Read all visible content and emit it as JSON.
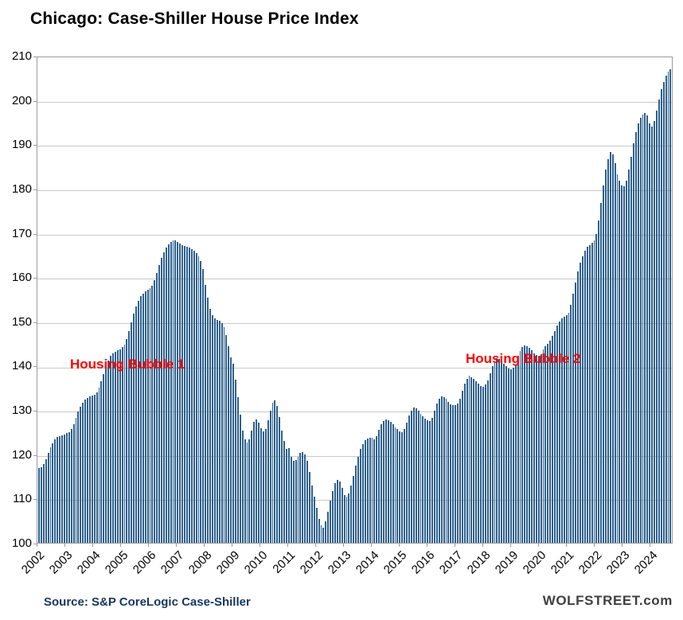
{
  "page": {
    "title": "Chicago: Case-Shiller House Price Index",
    "source_note": "Source: S&P CoreLogic Case-Shiller",
    "watermark": "WOLFSTREET.com"
  },
  "annotations": [
    {
      "id": "housing-bubble-1",
      "text": "Housing Bubble 1"
    },
    {
      "id": "housing-bubble-2",
      "text": "Housing Bubble 2"
    }
  ],
  "colors": {
    "title": "#000000",
    "bar": "#2F618D",
    "annotation": "#FF0000",
    "source_note": "#17365D",
    "watermark": "#3F3F3F",
    "gridline": "#C9C9C9",
    "plot_border": "#9B9B9B"
  },
  "chart_data": {
    "type": "bar",
    "title": "Chicago: Case-Shiller House Price Index",
    "x_start": "2002-01",
    "x_end": "2024-10",
    "frequency": "monthly",
    "xlabel": "",
    "ylabel": "",
    "ylim": [
      100,
      210
    ],
    "ytick_step": 10,
    "grid": "horizontal",
    "legend": "none",
    "xtick_interval_months": 12,
    "xtick_labels": [
      "2002",
      "2003",
      "2004",
      "2005",
      "2006",
      "2007",
      "2008",
      "2009",
      "2010",
      "2011",
      "2012",
      "2013",
      "2014",
      "2015",
      "2016",
      "2017",
      "2018",
      "2019",
      "2020",
      "2021",
      "2022",
      "2023",
      "2024"
    ],
    "values": [
      117.0,
      117.2,
      117.9,
      119.0,
      120.3,
      121.6,
      122.6,
      123.4,
      123.9,
      124.2,
      124.4,
      124.6,
      124.8,
      125.1,
      125.7,
      126.9,
      128.3,
      129.7,
      130.9,
      131.8,
      132.4,
      132.8,
      133.1,
      133.3,
      133.6,
      134.1,
      135.1,
      136.6,
      138.3,
      139.9,
      141.3,
      142.3,
      142.9,
      143.3,
      143.6,
      143.9,
      144.3,
      144.9,
      146.1,
      147.9,
      149.9,
      151.9,
      153.5,
      154.9,
      155.9,
      156.5,
      156.9,
      157.3,
      157.7,
      158.3,
      159.6,
      161.1,
      162.9,
      164.5,
      165.9,
      166.9,
      167.7,
      168.2,
      168.5,
      168.5,
      168.2,
      167.8,
      167.5,
      167.3,
      167.1,
      166.9,
      166.6,
      166.2,
      165.7,
      165.0,
      163.8,
      162.0,
      158.5,
      155.5,
      153.0,
      151.5,
      150.8,
      150.5,
      150.3,
      149.8,
      148.8,
      147.0,
      144.5,
      142.0,
      140.5,
      137.0,
      133.0,
      129.0,
      125.5,
      123.5,
      122.8,
      123.5,
      125.5,
      127.5,
      128.0,
      127.2,
      126.0,
      125.3,
      125.8,
      127.8,
      130.0,
      131.8,
      132.2,
      131.0,
      128.5,
      125.5,
      123.0,
      121.3,
      121.5,
      119.5,
      118.5,
      118.8,
      119.5,
      120.3,
      120.5,
      120.0,
      118.5,
      116.0,
      113.0,
      110.5,
      108.0,
      105.5,
      104.0,
      103.5,
      104.8,
      107.0,
      109.5,
      111.8,
      113.5,
      114.3,
      113.8,
      112.5,
      110.8,
      110.5,
      111.2,
      113.0,
      115.2,
      117.5,
      119.5,
      121.2,
      122.4,
      123.2,
      123.6,
      123.8,
      123.8,
      123.5,
      124.2,
      125.6,
      126.8,
      127.6,
      128.0,
      127.8,
      127.4,
      126.8,
      126.2,
      125.8,
      125.2,
      125.0,
      125.8,
      127.3,
      128.8,
      130.0,
      130.6,
      130.4,
      129.9,
      129.2,
      128.6,
      128.2,
      127.8,
      127.6,
      128.4,
      130.0,
      131.5,
      132.6,
      133.2,
      133.0,
      132.6,
      132.0,
      131.4,
      131.2,
      131.2,
      131.5,
      132.6,
      134.4,
      136.0,
      137.2,
      137.8,
      137.6,
      137.2,
      136.6,
      136.0,
      135.6,
      135.4,
      135.8,
      136.8,
      138.5,
      140.0,
      141.2,
      141.8,
      141.6,
      141.2,
      140.6,
      140.0,
      139.5,
      139.3,
      139.6,
      140.4,
      142.0,
      143.4,
      144.4,
      144.8,
      144.6,
      144.2,
      143.6,
      143.0,
      142.6,
      142.4,
      142.8,
      143.8,
      144.6,
      145.0,
      145.8,
      146.8,
      148.0,
      149.2,
      150.2,
      150.8,
      151.2,
      151.5,
      152.2,
      154.0,
      156.5,
      159.0,
      161.5,
      163.5,
      165.0,
      166.2,
      167.0,
      167.5,
      168.0,
      168.5,
      170.0,
      173.0,
      177.0,
      181.0,
      184.5,
      187.0,
      188.5,
      188.0,
      186.0,
      183.5,
      182.0,
      181.0,
      180.8,
      182.0,
      184.5,
      187.5,
      190.5,
      193.0,
      195.0,
      196.3,
      197.0,
      197.3,
      196.8,
      195.0,
      194.3,
      195.5,
      198.0,
      200.5,
      202.8,
      204.5,
      205.8,
      206.8,
      207.3
    ]
  }
}
